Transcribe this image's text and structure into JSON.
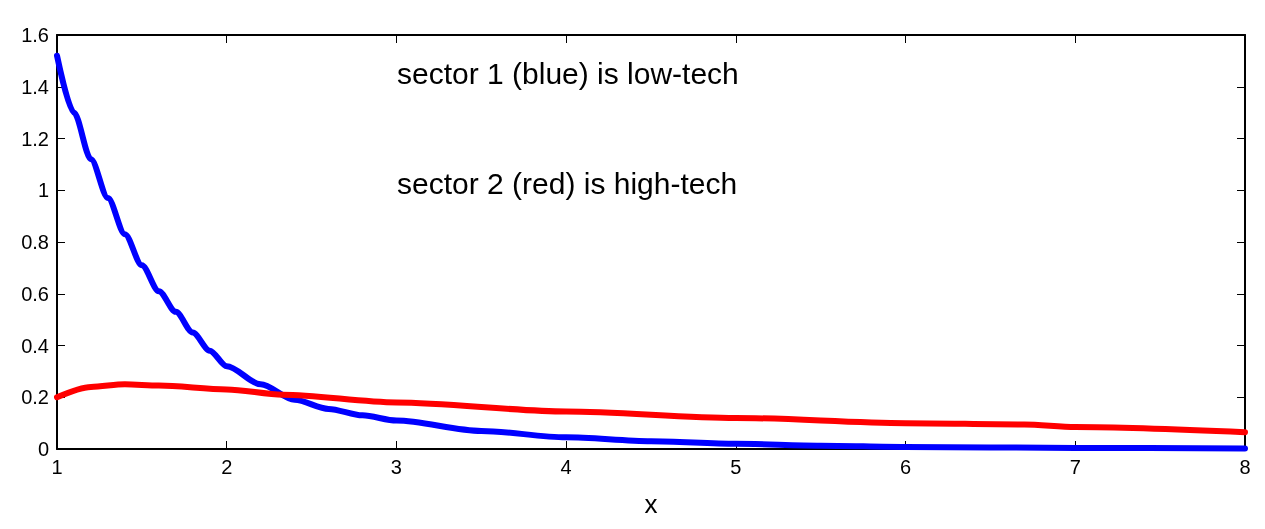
{
  "chart_data": {
    "type": "line",
    "xlabel": "x",
    "annotations": [
      "sector 1 (blue) is low-tech",
      "sector 2 (red) is high-tech"
    ],
    "xlim": [
      1,
      8
    ],
    "xticks": [
      1,
      2,
      3,
      4,
      5,
      6,
      7,
      8
    ],
    "ylim": [
      0,
      1.6
    ],
    "yticks": [
      0,
      0.2,
      0.4,
      0.6,
      0.8,
      1,
      1.2,
      1.4,
      1.6
    ],
    "marker": "none",
    "line_style": "solid",
    "series": [
      {
        "color": "#0000ff",
        "x": [
          1,
          1.1,
          1.2,
          1.3,
          1.4,
          1.5,
          1.6,
          1.7,
          1.8,
          1.9,
          2,
          2.2,
          2.4,
          2.6,
          2.8,
          3,
          3.5,
          4,
          4.5,
          5,
          5.5,
          6,
          7,
          8
        ],
        "values": [
          1.52,
          1.3,
          1.12,
          0.97,
          0.83,
          0.71,
          0.61,
          0.53,
          0.45,
          0.38,
          0.32,
          0.25,
          0.19,
          0.155,
          0.13,
          0.11,
          0.07,
          0.045,
          0.03,
          0.02,
          0.013,
          0.008,
          0.004,
          0.002
        ]
      },
      {
        "color": "#ff0000",
        "x": [
          1,
          1.2,
          1.4,
          1.6,
          2,
          2.33,
          3,
          4,
          5,
          6,
          6.7,
          7,
          8
        ],
        "values": [
          0.2,
          0.24,
          0.25,
          0.245,
          0.23,
          0.21,
          0.18,
          0.145,
          0.12,
          0.1,
          0.095,
          0.085,
          0.065
        ]
      }
    ]
  }
}
